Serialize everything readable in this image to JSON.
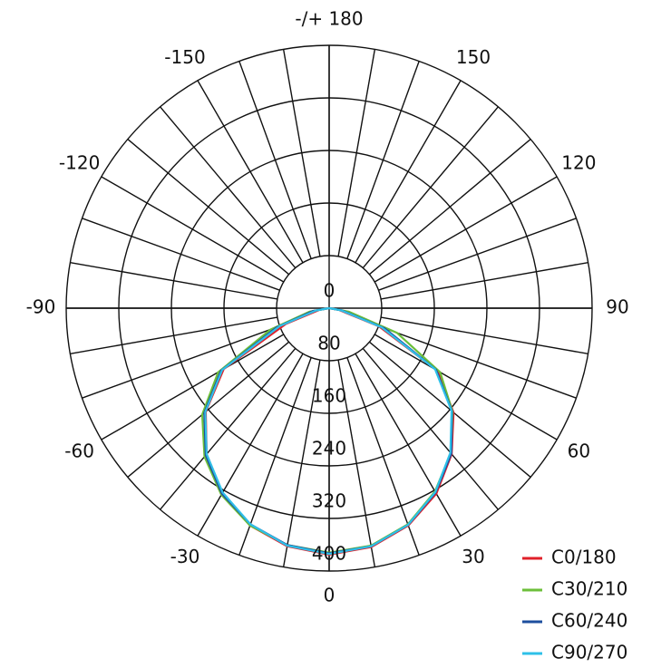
{
  "chart_data": {
    "type": "polar-line",
    "x": [
      -90,
      -80,
      -70,
      -60,
      -50,
      -40,
      -30,
      -20,
      -10,
      0,
      10,
      20,
      30,
      40,
      50,
      60,
      70,
      80,
      90
    ],
    "xticks": [
      0,
      30,
      60,
      90,
      120,
      150,
      {
        "value": 180,
        "label": "-/+ 180"
      },
      -150,
      -120,
      -90,
      -60,
      -30
    ],
    "ylim": [
      0,
      400
    ],
    "yticks": [
      0,
      80,
      160,
      240,
      320,
      400
    ],
    "legend": "bottom-right",
    "series": [
      {
        "name": "C0/180",
        "color": "#e0202a",
        "values": [
          0,
          15,
          70,
          185,
          245,
          290,
          325,
          352,
          368,
          375,
          369,
          352,
          326,
          290,
          247,
          190,
          80,
          15,
          0
        ]
      },
      {
        "name": "C30/210",
        "color": "#6cbf3a",
        "values": [
          0,
          30,
          95,
          195,
          252,
          295,
          328,
          352,
          366,
          372,
          367,
          350,
          322,
          288,
          245,
          195,
          110,
          30,
          0
        ]
      },
      {
        "name": "C60/240",
        "color": "#1d4e9e",
        "values": [
          0,
          25,
          85,
          190,
          248,
          292,
          326,
          350,
          366,
          373,
          368,
          351,
          324,
          289,
          244,
          188,
          90,
          20,
          0
        ]
      },
      {
        "name": "C90/270",
        "color": "#2ec0e8",
        "values": [
          0,
          20,
          80,
          188,
          246,
          290,
          324,
          350,
          367,
          374,
          368,
          351,
          323,
          287,
          243,
          186,
          85,
          18,
          0
        ]
      }
    ]
  }
}
